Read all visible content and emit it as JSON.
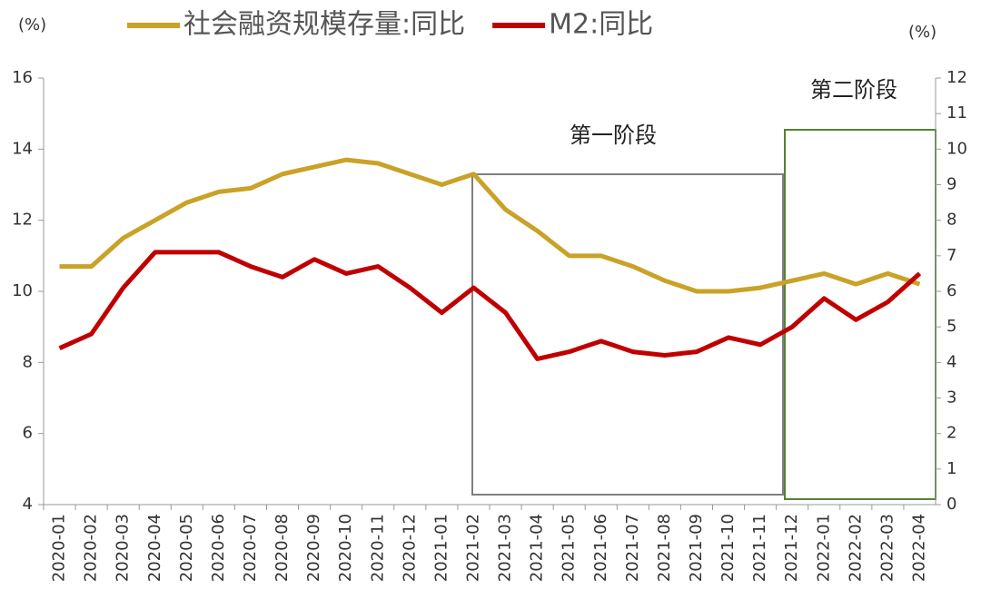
{
  "chart_data": {
    "type": "line",
    "y_unit": "(%)",
    "y2_unit": "(%)",
    "categories": [
      "2020-01",
      "2020-02",
      "2020-03",
      "2020-04",
      "2020-05",
      "2020-06",
      "2020-07",
      "2020-08",
      "2020-09",
      "2020-10",
      "2020-11",
      "2020-12",
      "2021-01",
      "2021-02",
      "2021-03",
      "2021-04",
      "2021-05",
      "2021-06",
      "2021-07",
      "2021-08",
      "2021-09",
      "2021-10",
      "2021-11",
      "2021-12",
      "2022-01",
      "2022-02",
      "2022-03",
      "2022-04"
    ],
    "series": [
      {
        "name": "社会融资规模存量:同比",
        "color": "#c9a227",
        "values": [
          10.7,
          10.7,
          11.5,
          12.0,
          12.5,
          12.8,
          12.9,
          13.3,
          13.5,
          13.7,
          13.6,
          13.3,
          13.0,
          13.3,
          12.3,
          11.7,
          11.0,
          11.0,
          10.7,
          10.3,
          10.0,
          10.0,
          10.1,
          10.3,
          10.5,
          10.2,
          10.5,
          10.2
        ]
      },
      {
        "name": "M2:同比",
        "color": "#c00000",
        "values": [
          8.4,
          8.8,
          10.1,
          11.1,
          11.1,
          11.1,
          10.7,
          10.4,
          10.9,
          10.5,
          10.7,
          10.1,
          9.4,
          10.1,
          9.4,
          8.1,
          8.3,
          8.6,
          8.3,
          8.2,
          8.3,
          8.7,
          8.5,
          9.0,
          9.8,
          9.2,
          9.7,
          10.5
        ]
      }
    ],
    "ylim": [
      4,
      16
    ],
    "yticks": [
      4,
      6,
      8,
      10,
      12,
      14,
      16
    ],
    "y2lim": [
      0,
      12
    ],
    "y2ticks": [
      0,
      1,
      2,
      3,
      4,
      5,
      6,
      7,
      8,
      9,
      10,
      11,
      12
    ],
    "annotations": [
      "第一阶段",
      "第二阶段"
    ]
  }
}
